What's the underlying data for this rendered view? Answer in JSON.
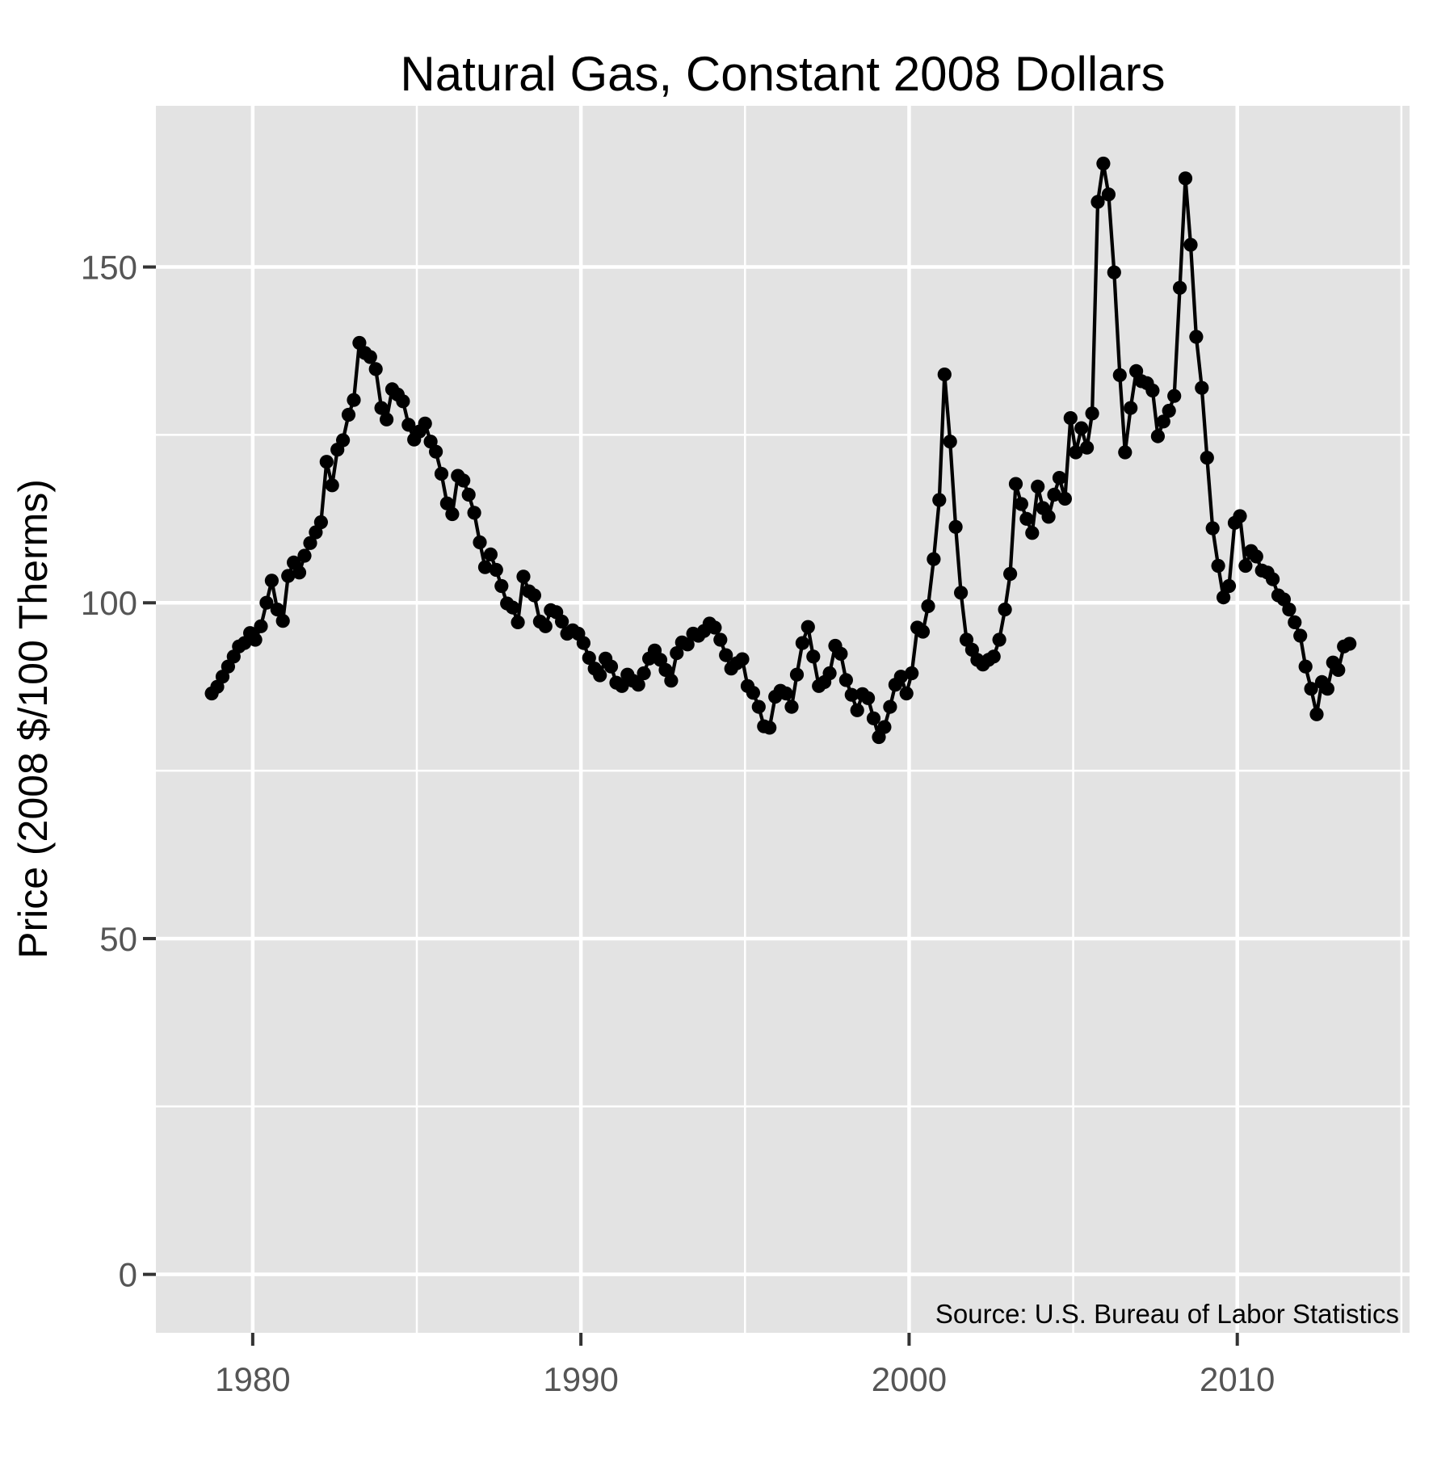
{
  "chart_data": {
    "type": "line",
    "title": "Natural Gas, Constant 2008 Dollars",
    "xlabel": "",
    "ylabel": "Price (2008 $/100 Therms)",
    "source_note": "Source:  U.S. Bureau of Labor Statistics",
    "series_name": "Natural gas price, constant 2008 dollars, monthly",
    "legend": "none",
    "grid": true,
    "x_domain": [
      1977.05,
      2015.25
    ],
    "y_domain": [
      -8.7,
      174.0
    ],
    "x_ticks": [
      1980,
      1990,
      2000,
      2010
    ],
    "x_minor_ticks": [
      1985,
      1995,
      2005,
      2015
    ],
    "y_ticks": [
      0,
      50,
      100,
      150
    ],
    "y_minor_ticks": [
      25,
      75,
      125
    ],
    "colors": {
      "panel_bg": "#E3E3E3",
      "grid": "#FFFFFF",
      "series": "#000000",
      "tick_label": "#555555",
      "tick_mark": "#333333",
      "text": "#000000"
    },
    "points": [
      [
        1978.75,
        86.5
      ],
      [
        1978.92,
        87.5
      ],
      [
        1979.08,
        89.0
      ],
      [
        1979.25,
        90.5
      ],
      [
        1979.42,
        92.0
      ],
      [
        1979.58,
        93.5
      ],
      [
        1979.75,
        94.0
      ],
      [
        1979.92,
        95.5
      ],
      [
        1980.08,
        94.5
      ],
      [
        1980.25,
        96.5
      ],
      [
        1980.42,
        100.0
      ],
      [
        1980.58,
        103.3
      ],
      [
        1980.75,
        99.0
      ],
      [
        1980.92,
        97.3
      ],
      [
        1981.08,
        104.0
      ],
      [
        1981.25,
        106.0
      ],
      [
        1981.42,
        104.5
      ],
      [
        1981.58,
        107.0
      ],
      [
        1981.75,
        108.9
      ],
      [
        1981.92,
        110.5
      ],
      [
        1982.08,
        112.0
      ],
      [
        1982.25,
        121.0
      ],
      [
        1982.42,
        117.5
      ],
      [
        1982.58,
        122.8
      ],
      [
        1982.75,
        124.2
      ],
      [
        1982.92,
        128.0
      ],
      [
        1983.08,
        130.2
      ],
      [
        1983.25,
        138.7
      ],
      [
        1983.42,
        137.2
      ],
      [
        1983.58,
        136.6
      ],
      [
        1983.75,
        134.8
      ],
      [
        1983.92,
        129.0
      ],
      [
        1984.08,
        127.3
      ],
      [
        1984.25,
        131.8
      ],
      [
        1984.42,
        131.0
      ],
      [
        1984.58,
        130.0
      ],
      [
        1984.75,
        126.5
      ],
      [
        1984.92,
        124.3
      ],
      [
        1985.08,
        125.5
      ],
      [
        1985.25,
        126.7
      ],
      [
        1985.42,
        124.0
      ],
      [
        1985.58,
        122.5
      ],
      [
        1985.75,
        119.2
      ],
      [
        1985.92,
        114.8
      ],
      [
        1986.08,
        113.2
      ],
      [
        1986.25,
        118.9
      ],
      [
        1986.42,
        118.2
      ],
      [
        1986.58,
        116.1
      ],
      [
        1986.75,
        113.4
      ],
      [
        1986.92,
        109.0
      ],
      [
        1987.08,
        105.3
      ],
      [
        1987.25,
        107.2
      ],
      [
        1987.42,
        104.9
      ],
      [
        1987.58,
        102.5
      ],
      [
        1987.75,
        99.9
      ],
      [
        1987.92,
        99.3
      ],
      [
        1988.08,
        97.1
      ],
      [
        1988.25,
        103.9
      ],
      [
        1988.42,
        101.7
      ],
      [
        1988.58,
        101.1
      ],
      [
        1988.75,
        97.2
      ],
      [
        1988.92,
        96.5
      ],
      [
        1989.08,
        98.9
      ],
      [
        1989.25,
        98.6
      ],
      [
        1989.42,
        97.2
      ],
      [
        1989.58,
        95.4
      ],
      [
        1989.75,
        95.9
      ],
      [
        1989.92,
        95.4
      ],
      [
        1990.08,
        94.0
      ],
      [
        1990.25,
        91.8
      ],
      [
        1990.42,
        90.2
      ],
      [
        1990.58,
        89.2
      ],
      [
        1990.75,
        91.7
      ],
      [
        1990.92,
        90.5
      ],
      [
        1991.08,
        88.1
      ],
      [
        1991.25,
        87.6
      ],
      [
        1991.42,
        89.3
      ],
      [
        1991.58,
        88.4
      ],
      [
        1991.75,
        87.8
      ],
      [
        1991.92,
        89.5
      ],
      [
        1992.08,
        91.7
      ],
      [
        1992.25,
        92.9
      ],
      [
        1992.42,
        91.5
      ],
      [
        1992.58,
        90.0
      ],
      [
        1992.75,
        88.4
      ],
      [
        1992.92,
        92.5
      ],
      [
        1993.08,
        94.1
      ],
      [
        1993.25,
        93.8
      ],
      [
        1993.42,
        95.4
      ],
      [
        1993.58,
        95.1
      ],
      [
        1993.75,
        95.8
      ],
      [
        1993.92,
        96.9
      ],
      [
        1994.08,
        96.3
      ],
      [
        1994.25,
        94.5
      ],
      [
        1994.42,
        92.2
      ],
      [
        1994.58,
        90.2
      ],
      [
        1994.75,
        91.0
      ],
      [
        1994.92,
        91.6
      ],
      [
        1995.08,
        87.6
      ],
      [
        1995.25,
        86.6
      ],
      [
        1995.42,
        84.5
      ],
      [
        1995.58,
        81.6
      ],
      [
        1995.75,
        81.4
      ],
      [
        1995.92,
        86.0
      ],
      [
        1996.08,
        86.9
      ],
      [
        1996.25,
        86.5
      ],
      [
        1996.42,
        84.5
      ],
      [
        1996.58,
        89.3
      ],
      [
        1996.75,
        94.0
      ],
      [
        1996.92,
        96.4
      ],
      [
        1997.08,
        92.0
      ],
      [
        1997.25,
        87.6
      ],
      [
        1997.42,
        88.2
      ],
      [
        1997.58,
        89.5
      ],
      [
        1997.75,
        93.6
      ],
      [
        1997.92,
        92.4
      ],
      [
        1998.08,
        88.5
      ],
      [
        1998.25,
        86.3
      ],
      [
        1998.42,
        84.0
      ],
      [
        1998.58,
        86.4
      ],
      [
        1998.75,
        85.8
      ],
      [
        1998.92,
        82.8
      ],
      [
        1999.08,
        80.0
      ],
      [
        1999.25,
        81.5
      ],
      [
        1999.42,
        84.5
      ],
      [
        1999.58,
        87.8
      ],
      [
        1999.75,
        89.0
      ],
      [
        1999.92,
        86.5
      ],
      [
        2000.08,
        89.5
      ],
      [
        2000.25,
        96.3
      ],
      [
        2000.42,
        95.7
      ],
      [
        2000.58,
        99.5
      ],
      [
        2000.75,
        106.5
      ],
      [
        2000.92,
        115.3
      ],
      [
        2001.08,
        134.0
      ],
      [
        2001.25,
        124.0
      ],
      [
        2001.42,
        111.3
      ],
      [
        2001.58,
        101.5
      ],
      [
        2001.75,
        94.5
      ],
      [
        2001.92,
        93.0
      ],
      [
        2002.08,
        91.5
      ],
      [
        2002.25,
        90.8
      ],
      [
        2002.42,
        91.5
      ],
      [
        2002.58,
        92.0
      ],
      [
        2002.75,
        94.5
      ],
      [
        2002.92,
        99.0
      ],
      [
        2003.08,
        104.3
      ],
      [
        2003.25,
        117.7
      ],
      [
        2003.42,
        114.7
      ],
      [
        2003.58,
        112.5
      ],
      [
        2003.75,
        110.4
      ],
      [
        2003.92,
        117.3
      ],
      [
        2004.08,
        114.1
      ],
      [
        2004.25,
        112.8
      ],
      [
        2004.42,
        116.1
      ],
      [
        2004.58,
        118.6
      ],
      [
        2004.75,
        115.5
      ],
      [
        2004.92,
        127.5
      ],
      [
        2005.08,
        122.4
      ],
      [
        2005.25,
        126.0
      ],
      [
        2005.42,
        123.1
      ],
      [
        2005.58,
        128.2
      ],
      [
        2005.75,
        159.7
      ],
      [
        2005.92,
        165.4
      ],
      [
        2006.08,
        160.8
      ],
      [
        2006.25,
        149.2
      ],
      [
        2006.42,
        133.9
      ],
      [
        2006.58,
        122.4
      ],
      [
        2006.75,
        129.0
      ],
      [
        2006.92,
        134.5
      ],
      [
        2007.08,
        133.0
      ],
      [
        2007.25,
        132.7
      ],
      [
        2007.42,
        131.6
      ],
      [
        2007.58,
        124.8
      ],
      [
        2007.75,
        127.0
      ],
      [
        2007.92,
        128.6
      ],
      [
        2008.08,
        130.8
      ],
      [
        2008.25,
        146.9
      ],
      [
        2008.42,
        163.2
      ],
      [
        2008.58,
        153.3
      ],
      [
        2008.75,
        139.6
      ],
      [
        2008.92,
        132.0
      ],
      [
        2009.08,
        121.6
      ],
      [
        2009.25,
        111.1
      ],
      [
        2009.42,
        105.5
      ],
      [
        2009.58,
        100.8
      ],
      [
        2009.75,
        102.5
      ],
      [
        2009.92,
        111.9
      ],
      [
        2010.08,
        112.9
      ],
      [
        2010.25,
        105.5
      ],
      [
        2010.42,
        107.7
      ],
      [
        2010.58,
        106.9
      ],
      [
        2010.75,
        104.8
      ],
      [
        2010.92,
        104.5
      ],
      [
        2011.08,
        103.5
      ],
      [
        2011.25,
        101.1
      ],
      [
        2011.42,
        100.5
      ],
      [
        2011.58,
        99.0
      ],
      [
        2011.75,
        97.1
      ],
      [
        2011.92,
        95.1
      ],
      [
        2012.08,
        90.5
      ],
      [
        2012.25,
        87.2
      ],
      [
        2012.42,
        83.4
      ],
      [
        2012.58,
        88.2
      ],
      [
        2012.75,
        87.2
      ],
      [
        2012.92,
        91.1
      ],
      [
        2013.08,
        90.0
      ],
      [
        2013.25,
        93.5
      ],
      [
        2013.42,
        93.9
      ]
    ]
  }
}
